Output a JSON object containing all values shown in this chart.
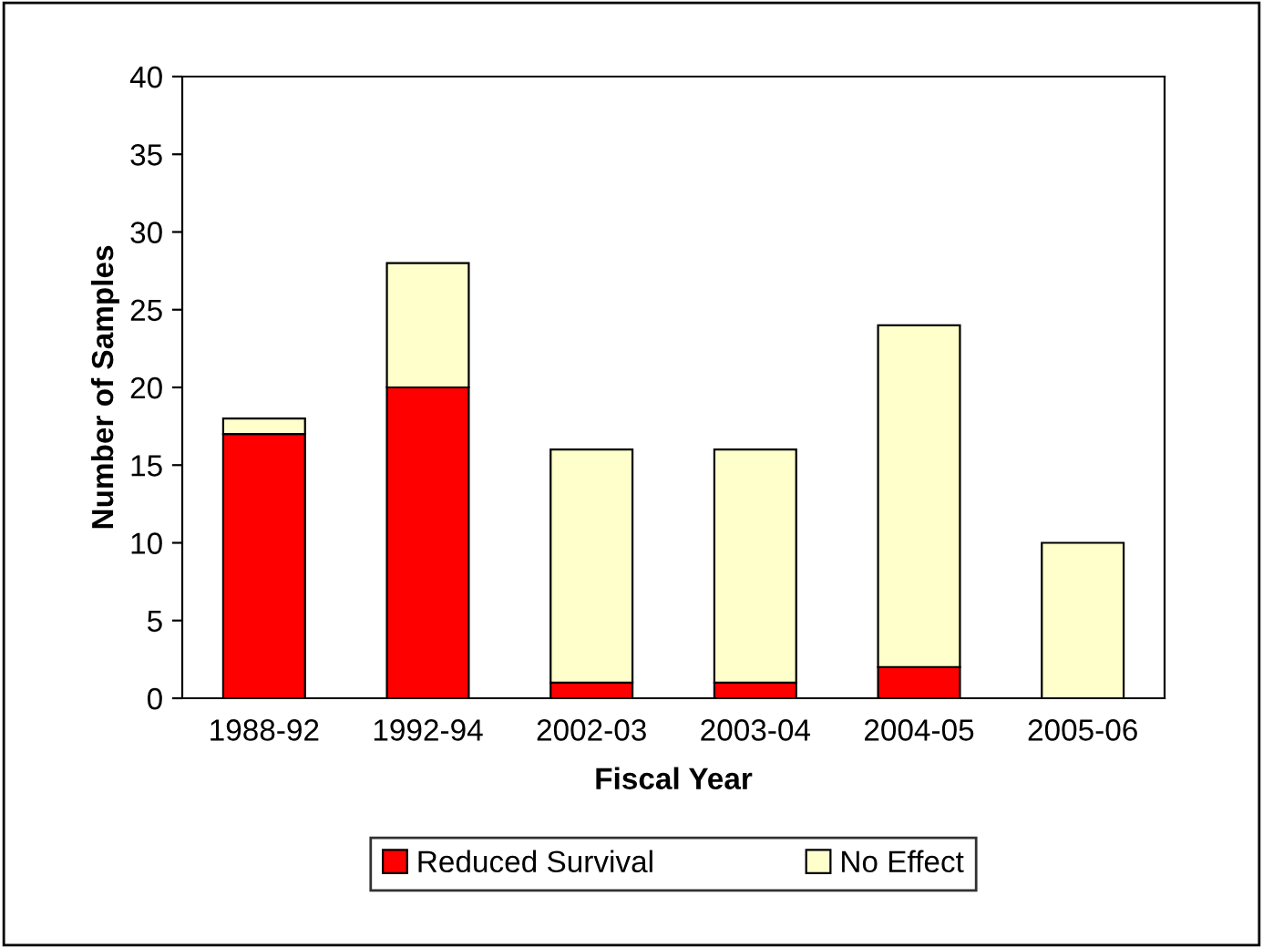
{
  "chart_data": {
    "type": "bar",
    "stacked": true,
    "xlabel": "Fiscal Year",
    "ylabel": "Number of Samples",
    "categories": [
      "1988-92",
      "1992-94",
      "2002-03",
      "2003-04",
      "2004-05",
      "2005-06"
    ],
    "series": [
      {
        "name": "Reduced Survival",
        "color": "#ff0000",
        "values": [
          17,
          20,
          1,
          1,
          2,
          0
        ]
      },
      {
        "name": "No Effect",
        "color": "#ffffcc",
        "values": [
          1,
          8,
          15,
          15,
          22,
          10
        ]
      }
    ],
    "ylim": [
      0,
      40
    ],
    "yticks": [
      0,
      5,
      10,
      15,
      20,
      25,
      30,
      35,
      40
    ],
    "grid": false,
    "legend": "bottom"
  }
}
